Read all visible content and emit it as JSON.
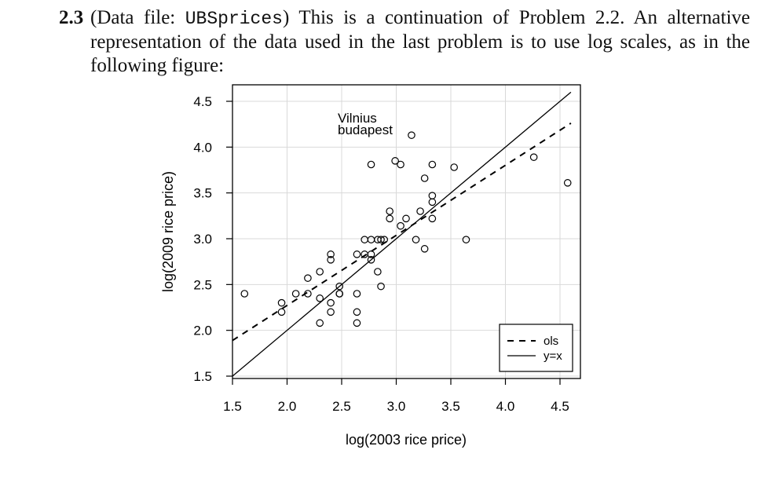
{
  "problem": {
    "number": "2.3",
    "text_prefix": "(Data file: ",
    "data_file": "UBSprices",
    "text_suffix": ") This is a continuation of Problem 2.2. An alternative representation of the data used in the last problem is to use log scales, as in the following figure:"
  },
  "chart_data": {
    "type": "scatter",
    "xlabel": "log(2003 rice price)",
    "ylabel": "log(2009 rice price)",
    "xlim": [
      1.5,
      4.6
    ],
    "ylim": [
      1.5,
      4.6
    ],
    "xticks": [
      "1.5",
      "2.0",
      "2.5",
      "3.0",
      "3.5",
      "4.0",
      "4.5"
    ],
    "yticks": [
      "1.5",
      "2.0",
      "2.5",
      "3.0",
      "3.5",
      "4.0",
      "4.5"
    ],
    "grid": true,
    "points": [
      [
        1.61,
        2.4
      ],
      [
        1.95,
        2.3
      ],
      [
        1.95,
        2.2
      ],
      [
        2.08,
        2.4
      ],
      [
        2.19,
        2.57
      ],
      [
        2.19,
        2.4
      ],
      [
        2.3,
        2.64
      ],
      [
        2.3,
        2.35
      ],
      [
        2.3,
        2.08
      ],
      [
        2.4,
        2.83
      ],
      [
        2.4,
        2.77
      ],
      [
        2.4,
        2.3
      ],
      [
        2.4,
        2.2
      ],
      [
        2.48,
        2.48
      ],
      [
        2.48,
        2.4
      ],
      [
        2.48,
        2.4
      ],
      [
        2.64,
        2.83
      ],
      [
        2.64,
        2.4
      ],
      [
        2.64,
        2.2
      ],
      [
        2.64,
        2.08
      ],
      [
        2.71,
        2.99
      ],
      [
        2.71,
        2.83
      ],
      [
        2.77,
        2.99
      ],
      [
        2.77,
        2.83
      ],
      [
        2.77,
        2.77
      ],
      [
        2.77,
        3.81
      ],
      [
        2.83,
        2.99
      ],
      [
        2.83,
        2.64
      ],
      [
        2.86,
        2.99
      ],
      [
        2.86,
        2.48
      ],
      [
        2.89,
        2.99
      ],
      [
        2.94,
        3.3
      ],
      [
        2.94,
        3.22
      ],
      [
        2.99,
        3.85
      ],
      [
        3.04,
        3.81
      ],
      [
        3.04,
        3.14
      ],
      [
        3.09,
        3.22
      ],
      [
        3.14,
        4.13
      ],
      [
        3.18,
        2.99
      ],
      [
        3.22,
        3.3
      ],
      [
        3.26,
        2.89
      ],
      [
        3.26,
        3.66
      ],
      [
        3.33,
        3.81
      ],
      [
        3.33,
        3.47
      ],
      [
        3.33,
        3.4
      ],
      [
        3.33,
        3.22
      ],
      [
        3.53,
        3.78
      ],
      [
        3.64,
        2.99
      ],
      [
        4.26,
        3.89
      ],
      [
        4.57,
        3.61
      ]
    ],
    "annotations": [
      "Vilnius",
      "budapest"
    ],
    "lines": [
      {
        "name": "ols",
        "style": "dashed",
        "intercept": 0.742,
        "slope": 0.765
      },
      {
        "name": "y=x",
        "style": "solid",
        "intercept": 0,
        "slope": 1
      }
    ],
    "legend": {
      "position": "bottom-right",
      "entries": [
        "ols",
        "y=x"
      ]
    }
  }
}
